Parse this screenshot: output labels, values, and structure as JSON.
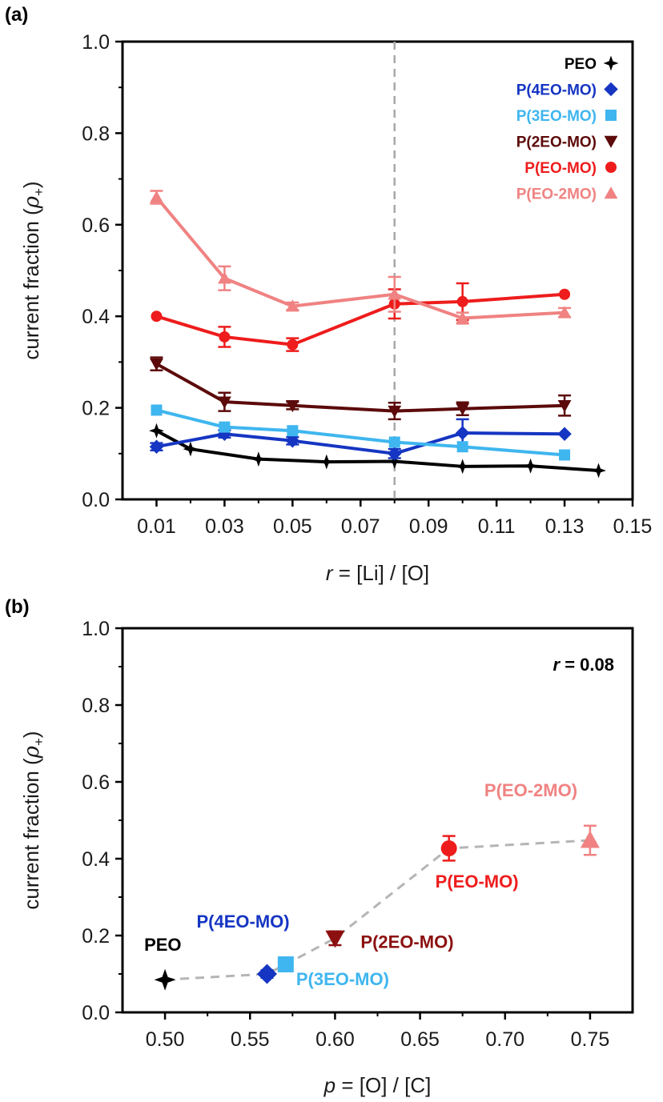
{
  "chart_data": [
    {
      "type": "line",
      "panel_label": "(a)",
      "xlabel_var": "r",
      "xlabel_rest": " = [Li] / [O]",
      "ylabel_text": "current fraction (",
      "ylabel_sym": "ρ",
      "ylabel_sub": "+",
      "ylabel_close": ")",
      "xlim": [
        0.0,
        0.15
      ],
      "ylim": [
        0.0,
        1.0
      ],
      "x_ticks": [
        0.01,
        0.03,
        0.05,
        0.07,
        0.09,
        0.11,
        0.13,
        0.15
      ],
      "x_tick_labels": [
        "0.01",
        "0.03",
        "0.05",
        "0.07",
        "0.09",
        "0.11",
        "0.13",
        "0.15"
      ],
      "y_ticks": [
        0.0,
        0.2,
        0.4,
        0.6,
        0.8,
        1.0
      ],
      "y_tick_labels": [
        "0.0",
        "0.2",
        "0.4",
        "0.6",
        "0.8",
        "1.0"
      ],
      "vertical_reference_line": 0.08,
      "legend_position": "top-right",
      "series": [
        {
          "name": "PEO",
          "color": "#000000",
          "marker": "star4",
          "x": [
            0.01,
            0.02,
            0.04,
            0.06,
            0.08,
            0.1,
            0.12,
            0.14
          ],
          "y": [
            0.15,
            0.11,
            0.088,
            0.082,
            0.083,
            0.072,
            0.073,
            0.063
          ]
        },
        {
          "name": "P(4EO-MO)",
          "color": "#1535c2",
          "marker": "diamond",
          "x": [
            0.01,
            0.03,
            0.05,
            0.08,
            0.1,
            0.13
          ],
          "y": [
            0.115,
            0.143,
            0.128,
            0.1,
            0.145,
            0.143
          ],
          "err": [
            0.008,
            0.008,
            0.008,
            0.01,
            0.03,
            0.005
          ]
        },
        {
          "name": "P(3EO-MO)",
          "color": "#3fb6ef",
          "marker": "square",
          "x": [
            0.01,
            0.03,
            0.05,
            0.08,
            0.1,
            0.13
          ],
          "y": [
            0.195,
            0.158,
            0.15,
            0.125,
            0.115,
            0.097
          ]
        },
        {
          "name": "P(2EO-MO)",
          "color": "#5c0a0a",
          "marker": "triangle-down",
          "x": [
            0.01,
            0.03,
            0.05,
            0.08,
            0.1,
            0.13
          ],
          "y": [
            0.296,
            0.213,
            0.205,
            0.193,
            0.198,
            0.205
          ],
          "err": [
            0.014,
            0.02,
            0.008,
            0.018,
            0.014,
            0.022
          ]
        },
        {
          "name": "P(EO-MO)",
          "color": "#ee1c1c",
          "marker": "circle",
          "x": [
            0.01,
            0.03,
            0.05,
            0.08,
            0.1,
            0.13
          ],
          "y": [
            0.4,
            0.355,
            0.338,
            0.427,
            0.432,
            0.448
          ],
          "err": [
            0.006,
            0.022,
            0.014,
            0.032,
            0.04,
            0.006
          ]
        },
        {
          "name": "P(EO-2MO)",
          "color": "#f08282",
          "marker": "triangle-up",
          "x": [
            0.01,
            0.03,
            0.05,
            0.08,
            0.1,
            0.13
          ],
          "y": [
            0.66,
            0.483,
            0.422,
            0.448,
            0.396,
            0.408
          ],
          "err": [
            0.014,
            0.026,
            0.008,
            0.038,
            0.012,
            0.01
          ]
        }
      ]
    },
    {
      "type": "scatter",
      "panel_label": "(b)",
      "xlabel_var": "p",
      "xlabel_rest": " = [O] / [C]",
      "ylabel_text": "current fraction (",
      "ylabel_sym": "ρ",
      "ylabel_sub": "+",
      "ylabel_close": ")",
      "xlim": [
        0.475,
        0.775
      ],
      "ylim": [
        0.0,
        1.0
      ],
      "x_ticks": [
        0.5,
        0.55,
        0.6,
        0.65,
        0.7,
        0.75
      ],
      "x_tick_labels": [
        "0.50",
        "0.55",
        "0.60",
        "0.65",
        "0.70",
        "0.75"
      ],
      "y_ticks": [
        0.0,
        0.2,
        0.4,
        0.6,
        0.8,
        1.0
      ],
      "y_tick_labels": [
        "0.0",
        "0.2",
        "0.4",
        "0.6",
        "0.8",
        "1.0"
      ],
      "annotation_var": "r",
      "annotation_rest": " = 0.08",
      "dashed_trend_line": true,
      "points": [
        {
          "name": "PEO",
          "x": 0.5,
          "y": 0.085,
          "color": "#000000",
          "marker": "star4",
          "err": 0.0
        },
        {
          "name": "P(4EO-MO)",
          "x": 0.56,
          "y": 0.1,
          "color": "#1535c2",
          "marker": "diamond",
          "err": 0.01
        },
        {
          "name": "P(3EO-MO)",
          "x": 0.571,
          "y": 0.125,
          "color": "#3fb6ef",
          "marker": "square",
          "err": 0.0
        },
        {
          "name": "P(2EO-MO)",
          "x": 0.6,
          "y": 0.193,
          "color": "#8c1010",
          "marker": "triangle-down",
          "err": 0.018
        },
        {
          "name": "P(EO-MO)",
          "x": 0.667,
          "y": 0.427,
          "color": "#ee1c1c",
          "marker": "circle",
          "err": 0.032
        },
        {
          "name": "P(EO-2MO)",
          "x": 0.75,
          "y": 0.448,
          "color": "#f08282",
          "marker": "triangle-up",
          "err": 0.038
        }
      ]
    }
  ]
}
